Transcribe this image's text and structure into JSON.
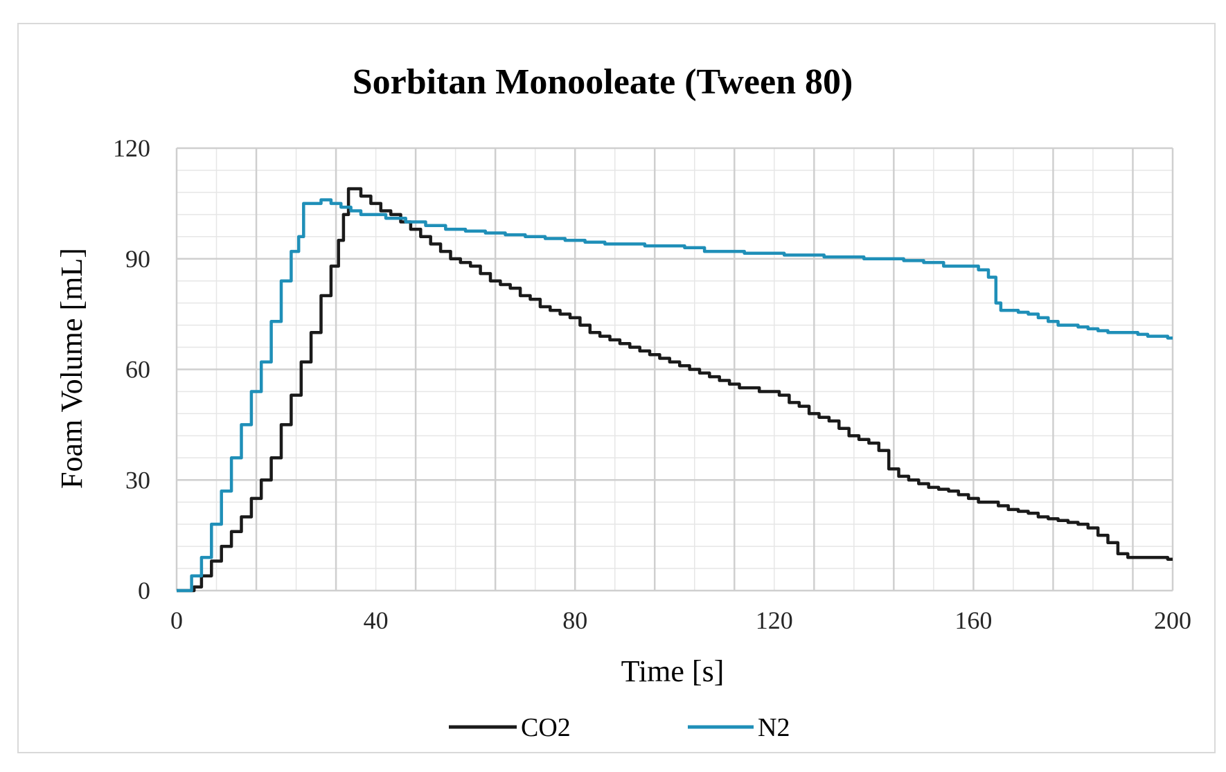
{
  "chart_data": {
    "type": "line",
    "title": "Sorbitan Monooleate (Tween 80)",
    "xlabel": "Time [s]",
    "ylabel": "Foam Volume [mL]",
    "xlim": [
      0,
      200
    ],
    "ylim": [
      0,
      120
    ],
    "x_ticks": [
      0,
      40,
      80,
      120,
      160,
      200
    ],
    "x_tick_labels": [
      "0",
      "40",
      "80",
      "120",
      "160",
      "200"
    ],
    "y_ticks": [
      0,
      30,
      60,
      90,
      120
    ],
    "y_tick_labels": [
      "0",
      "30",
      "60",
      "90",
      "120"
    ],
    "x_minor_grid_step": 8,
    "y_minor_grid_step": 6,
    "grid": true,
    "legend_position": "bottom",
    "series": [
      {
        "name": "CO2",
        "color": "#1a1a1a",
        "x": [
          0,
          3,
          4,
          6,
          8,
          10,
          12,
          14,
          16,
          18,
          20,
          22,
          24,
          26,
          28,
          30,
          32,
          33,
          34,
          35,
          36,
          38,
          40,
          42,
          44,
          46,
          48,
          50,
          52,
          54,
          56,
          58,
          60,
          62,
          64,
          66,
          68,
          70,
          72,
          74,
          76,
          78,
          80,
          82,
          84,
          86,
          88,
          90,
          92,
          94,
          96,
          98,
          100,
          102,
          104,
          106,
          108,
          110,
          112,
          114,
          116,
          118,
          120,
          122,
          124,
          126,
          128,
          130,
          132,
          134,
          136,
          138,
          140,
          142,
          144,
          146,
          148,
          150,
          152,
          154,
          156,
          158,
          160,
          162,
          164,
          166,
          168,
          170,
          172,
          174,
          176,
          178,
          180,
          182,
          184,
          186,
          188,
          190,
          192,
          194,
          196,
          198,
          200
        ],
        "y": [
          0,
          0,
          1,
          4,
          8,
          12,
          16,
          20,
          25,
          30,
          36,
          45,
          53,
          62,
          70,
          80,
          88,
          95,
          102,
          109,
          109,
          107,
          105,
          103,
          102,
          100,
          98,
          96,
          94,
          92,
          90,
          89,
          88,
          86,
          84,
          83,
          82,
          80,
          79,
          77,
          76,
          75,
          74,
          72,
          70,
          69,
          68,
          67,
          66,
          65,
          64,
          63,
          62,
          61,
          60,
          59,
          58,
          57,
          56,
          55,
          55,
          54,
          54,
          53,
          51,
          50,
          48,
          47,
          46,
          44,
          42,
          41,
          40,
          38,
          33,
          31,
          30,
          29,
          28,
          27.5,
          27,
          26,
          25,
          24,
          24,
          23,
          22,
          21.5,
          21,
          20,
          19.5,
          19,
          18.5,
          18,
          17,
          15,
          13,
          10,
          9,
          9,
          9,
          9,
          8.5
        ]
      },
      {
        "name": "N2",
        "color": "#1f8fb8",
        "x": [
          0,
          2,
          4,
          6,
          8,
          10,
          12,
          14,
          16,
          18,
          20,
          22,
          24,
          25,
          26,
          28,
          30,
          32,
          34,
          36,
          38,
          40,
          44,
          48,
          52,
          56,
          60,
          64,
          68,
          72,
          76,
          80,
          84,
          88,
          92,
          96,
          100,
          104,
          108,
          110,
          112,
          116,
          120,
          124,
          128,
          132,
          136,
          140,
          144,
          148,
          152,
          156,
          160,
          162,
          164,
          165,
          166,
          168,
          170,
          172,
          174,
          176,
          178,
          180,
          182,
          184,
          186,
          188,
          190,
          192,
          194,
          196,
          198,
          200
        ],
        "y": [
          0,
          0,
          4,
          9,
          18,
          27,
          36,
          45,
          54,
          62,
          73,
          84,
          92,
          96,
          105,
          105,
          106,
          105,
          104,
          103,
          102,
          102,
          101,
          100,
          99,
          98,
          97.5,
          97,
          96.5,
          96,
          95.5,
          95,
          94.5,
          94,
          94,
          93.5,
          93.5,
          93,
          92,
          92,
          92,
          91.5,
          91.5,
          91,
          91,
          90.5,
          90.5,
          90,
          90,
          89.5,
          89,
          88,
          88,
          87,
          85,
          78,
          76,
          76,
          75.5,
          75,
          74,
          73,
          72,
          72,
          71.5,
          71,
          70.5,
          70,
          70,
          70,
          69.5,
          69,
          69,
          68.5
        ]
      }
    ]
  }
}
